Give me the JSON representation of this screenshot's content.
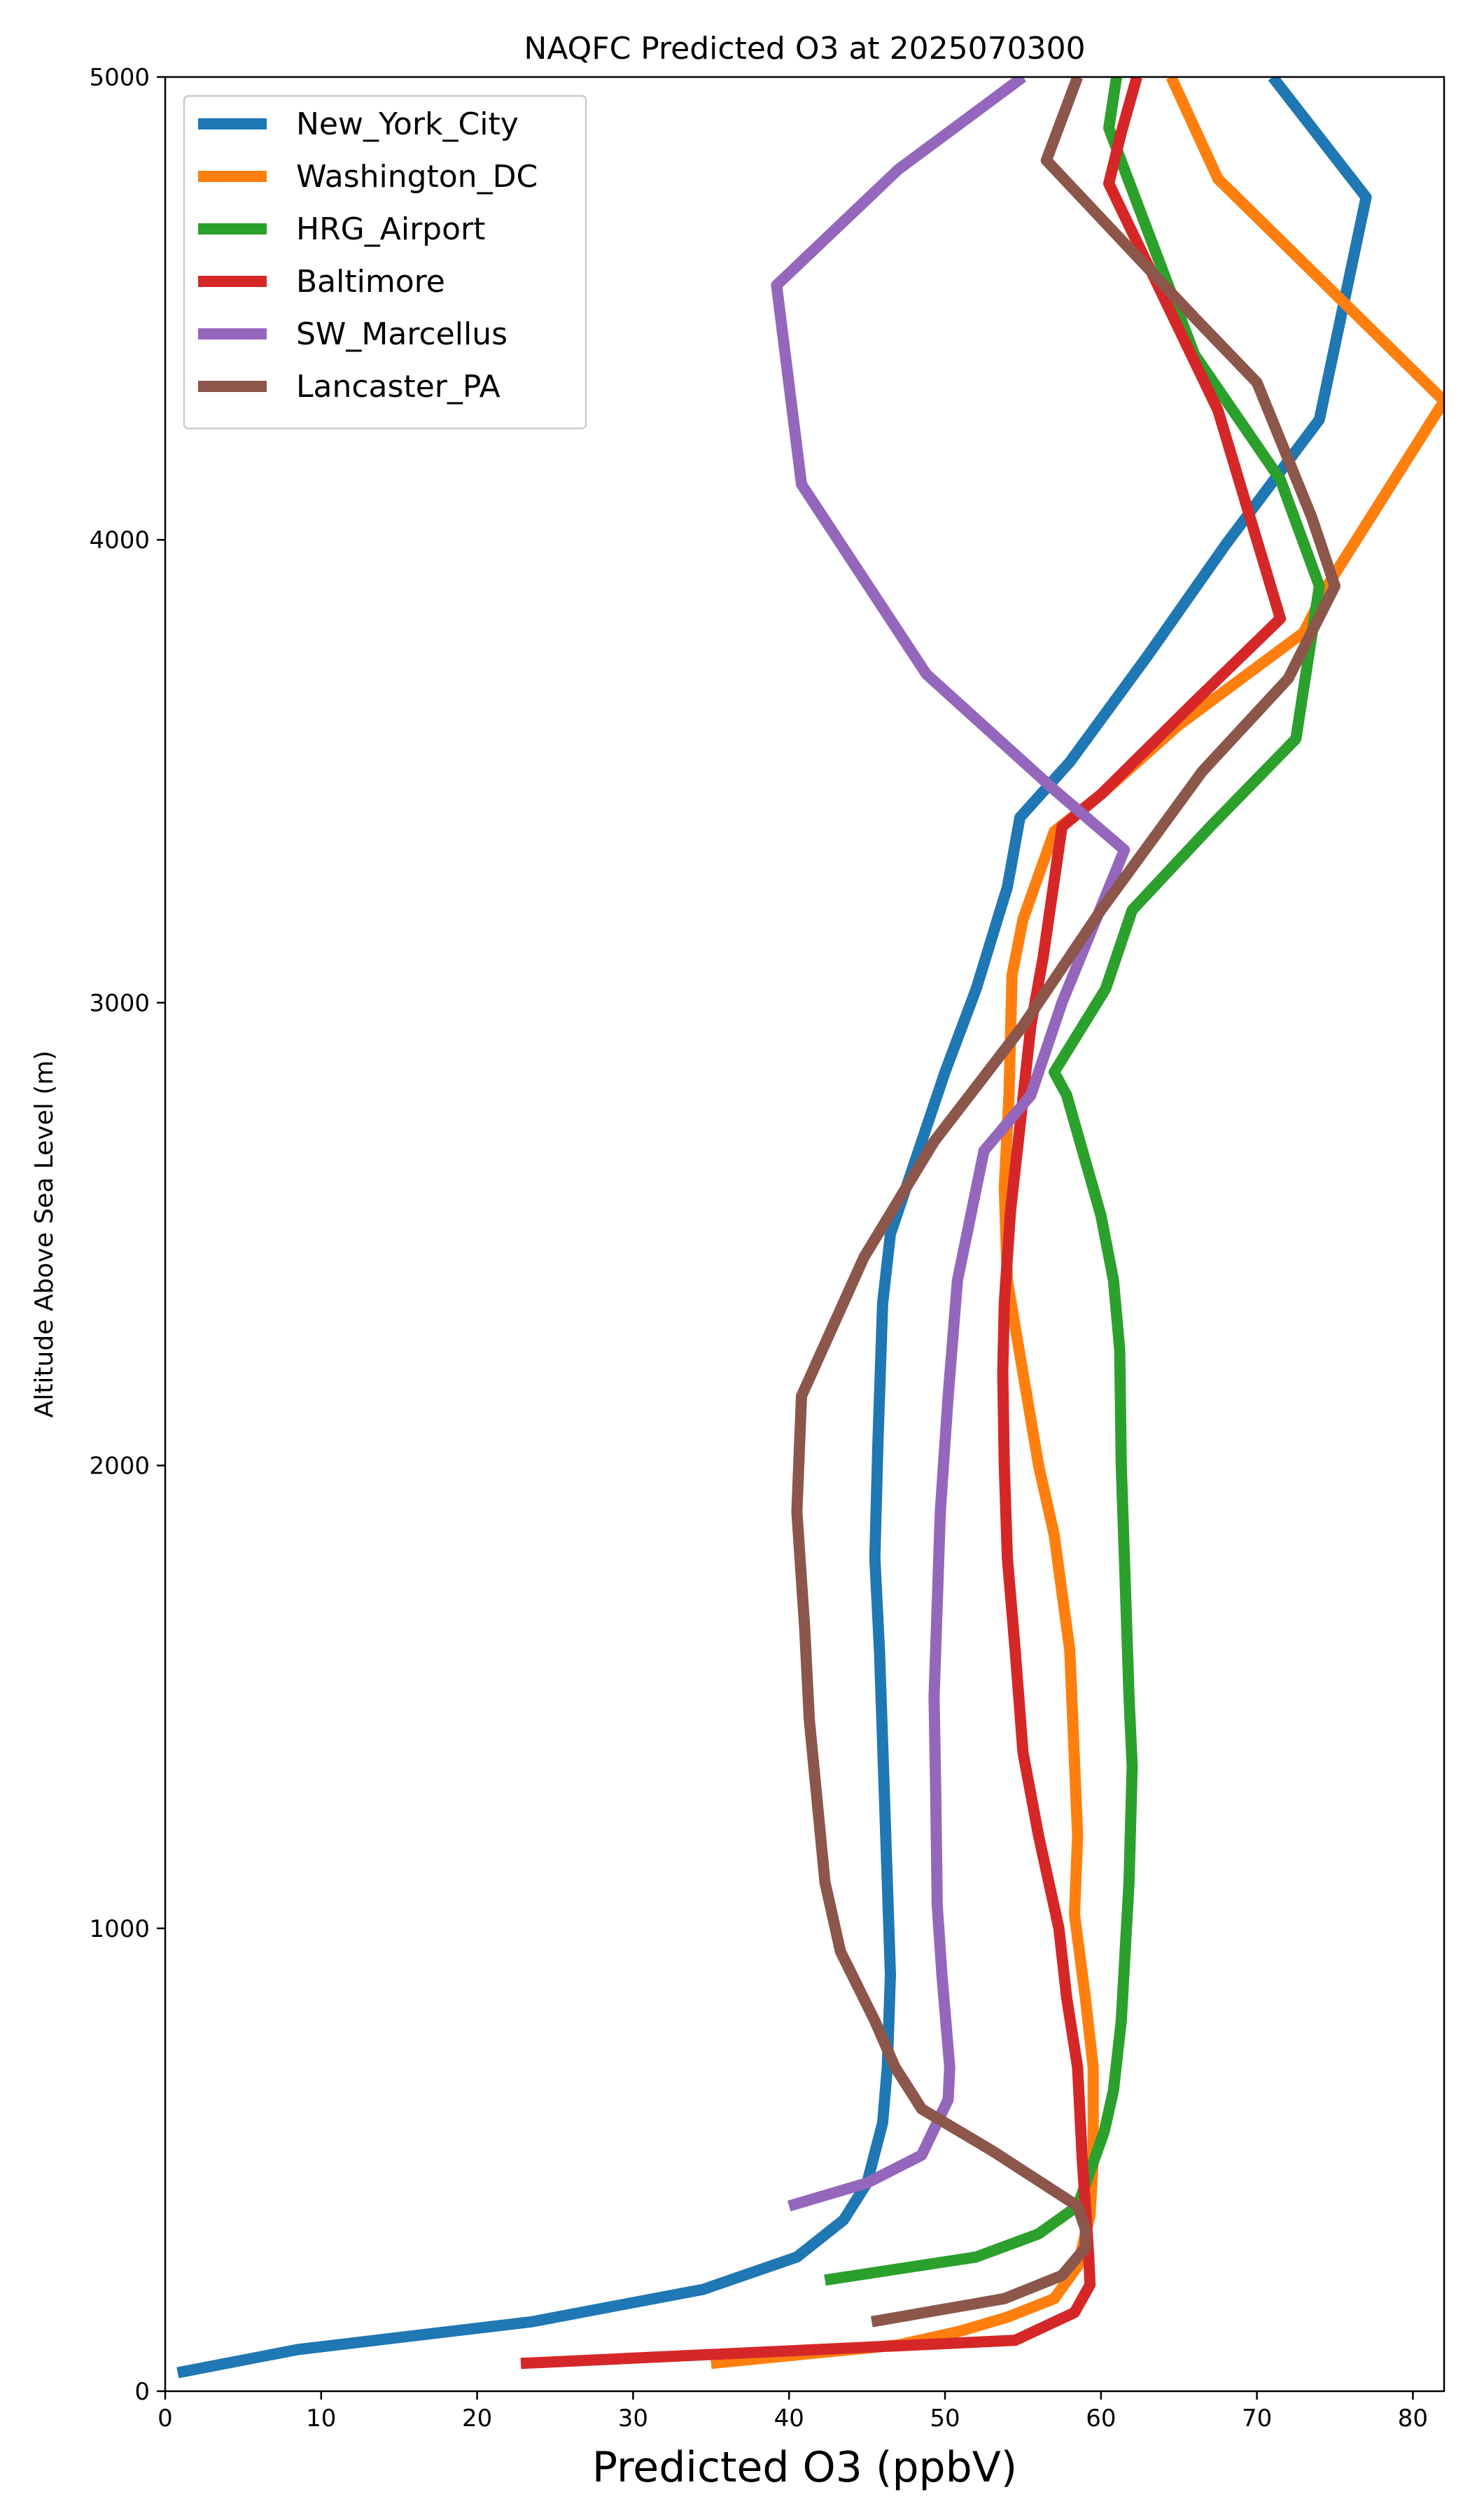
{
  "chart_data": {
    "type": "line",
    "title": "NAQFC Predicted O3 at 2025070300",
    "xlabel": "Predicted O3 (ppbV)",
    "ylabel": "Altitude Above Sea Level (m)",
    "xlim": [
      0,
      82
    ],
    "ylim": [
      0,
      5000
    ],
    "xticks": [
      0,
      10,
      20,
      30,
      40,
      50,
      60,
      70,
      80
    ],
    "yticks": [
      0,
      1000,
      2000,
      3000,
      4000,
      5000
    ],
    "grid": false,
    "legend_position": "top-left",
    "series": [
      {
        "name": "New_York_City",
        "color": "#1f77b4",
        "x": [
          0.8,
          8.5,
          23.5,
          34.5,
          40.5,
          43.5,
          45,
          46,
          46.3,
          46.5,
          46.3,
          46,
          45.8,
          45.5,
          45.7,
          46,
          46.5,
          48,
          50,
          52,
          54,
          54.8,
          58,
          63,
          68,
          74,
          77,
          71
        ],
        "y": [
          40,
          90,
          150,
          220,
          290,
          370,
          450,
          580,
          700,
          900,
          1100,
          1400,
          1600,
          1800,
          2050,
          2350,
          2500,
          2650,
          2850,
          3030,
          3250,
          3400,
          3520,
          3750,
          3990,
          4260,
          4740,
          5000
        ]
      },
      {
        "name": "Washington_DC",
        "color": "#ff7f0e",
        "x": [
          35,
          47,
          51,
          54,
          57,
          58.5,
          59.3,
          59.5,
          59.5,
          59,
          58.3,
          58.5,
          58,
          57,
          56,
          55,
          54,
          53.8,
          54.1,
          54.3,
          55,
          57,
          60,
          65,
          73,
          74.5,
          82,
          67.5,
          64.5
        ],
        "y": [
          60,
          100,
          130,
          160,
          200,
          270,
          380,
          500,
          700,
          850,
          1030,
          1200,
          1600,
          1850,
          2000,
          2200,
          2400,
          2600,
          2800,
          3060,
          3180,
          3370,
          3450,
          3600,
          3800,
          3900,
          4300,
          4780,
          5000
        ]
      },
      {
        "name": "HRG_Airport",
        "color": "#2ca02c",
        "x": [
          42.3,
          52,
          56,
          58.5,
          60.2,
          60.8,
          61.3,
          61.8,
          62,
          61.8,
          61.6,
          61.3,
          61.2,
          60.8,
          60,
          57.8,
          57,
          60.3,
          62,
          67,
          72.5,
          74,
          71.5,
          66,
          61.5,
          60.5,
          61
        ],
        "y": [
          240,
          290,
          340,
          400,
          560,
          650,
          800,
          1100,
          1350,
          1500,
          1700,
          2000,
          2250,
          2400,
          2540,
          2800,
          2850,
          3030,
          3200,
          3380,
          3570,
          3900,
          4130,
          4400,
          4800,
          4890,
          5000
        ]
      },
      {
        "name": "Baltimore",
        "color": "#d62728",
        "x": [
          22.8,
          54.5,
          58.3,
          59.3,
          59.2,
          58.8,
          58.5,
          57.8,
          57.3,
          56,
          55,
          54.5,
          54,
          53.8,
          53.7,
          53.8,
          54.2,
          54.7,
          55.5,
          56.3,
          57.5,
          60,
          66,
          71.5,
          67.5,
          60.5,
          61.3,
          62.3
        ],
        "y": [
          60,
          110,
          170,
          230,
          300,
          500,
          700,
          850,
          1000,
          1200,
          1380,
          1600,
          1800,
          2000,
          2200,
          2350,
          2550,
          2700,
          2950,
          3100,
          3380,
          3450,
          3650,
          3830,
          4280,
          4770,
          4880,
          5000
        ]
      },
      {
        "name": "SW_Marcellus",
        "color": "#9467bd",
        "x": [
          40,
          45,
          48.5,
          50.2,
          50.3,
          49.8,
          49.5,
          49.4,
          49.3,
          49.5,
          49.7,
          50.2,
          50.8,
          52.5,
          55.5,
          57.5,
          61.5,
          57,
          48.8,
          40.8,
          39.2,
          47,
          55
        ],
        "y": [
          400,
          450,
          510,
          630,
          700,
          900,
          1050,
          1300,
          1500,
          1700,
          1900,
          2150,
          2400,
          2680,
          2800,
          3000,
          3330,
          3460,
          3710,
          4120,
          4550,
          4800,
          5000
        ]
      },
      {
        "name": "Lancaster_PA",
        "color": "#8c564b",
        "x": [
          45.3,
          53.8,
          57.5,
          59,
          59,
          58.5,
          53,
          48.5,
          46.8,
          45.5,
          43.3,
          42.3,
          41.3,
          41,
          40.5,
          40.8,
          44.8,
          49.3,
          55,
          60,
          66.5,
          72,
          75,
          73.5,
          70,
          66,
          56.5,
          58.5
        ],
        "y": [
          150,
          200,
          250,
          310,
          350,
          400,
          520,
          610,
          700,
          800,
          950,
          1100,
          1450,
          1650,
          1900,
          2150,
          2450,
          2700,
          2950,
          3200,
          3500,
          3700,
          3900,
          4050,
          4340,
          4480,
          4820,
          5000
        ]
      }
    ]
  }
}
